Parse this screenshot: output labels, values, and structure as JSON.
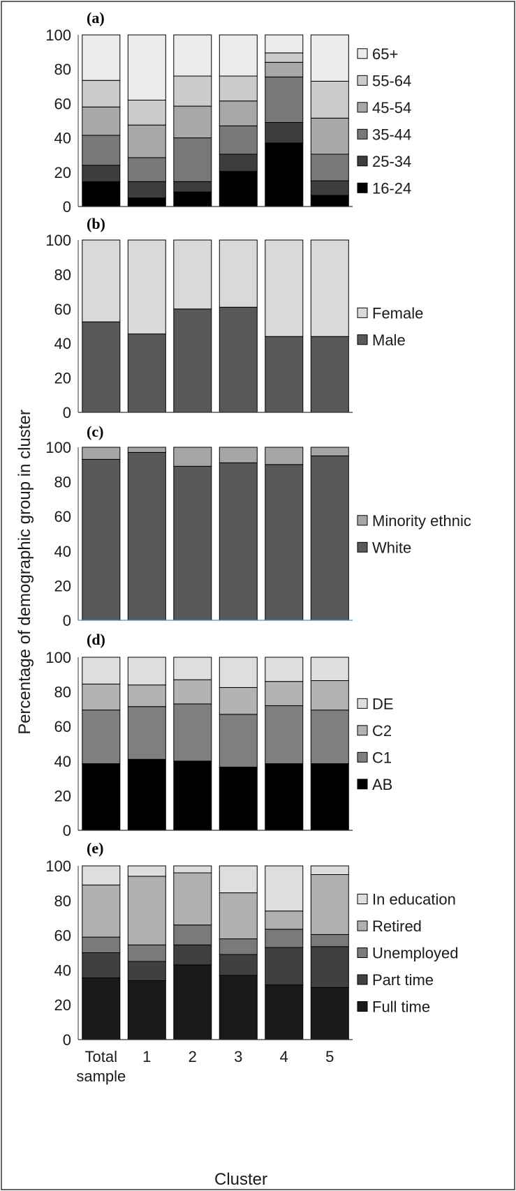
{
  "figure": {
    "ylabel": "Percentage of demographic group in cluster",
    "xlabel": "Cluster",
    "categories": [
      "Total sample",
      "1",
      "2",
      "3",
      "4",
      "5"
    ]
  },
  "chart_data": [
    {
      "type": "bar",
      "stacked": true,
      "label": "(a)",
      "categories": [
        "Total sample",
        "1",
        "2",
        "3",
        "4",
        "5"
      ],
      "ylim": [
        0,
        100
      ],
      "yticks": [
        0,
        20,
        40,
        60,
        80,
        100
      ],
      "legend_position": "right",
      "series": [
        {
          "name": "16-24",
          "color": "#000000",
          "values": [
            14.5,
            5,
            8.5,
            20.5,
            37,
            6.5
          ]
        },
        {
          "name": "25-34",
          "color": "#3d3d3d",
          "values": [
            9.5,
            9.5,
            6,
            10,
            12,
            8.5
          ]
        },
        {
          "name": "35-44",
          "color": "#787878",
          "values": [
            17.5,
            14,
            25.5,
            16.5,
            26.5,
            15.5
          ]
        },
        {
          "name": "45-54",
          "color": "#a8a8a8",
          "values": [
            16.5,
            19,
            18.5,
            14.5,
            8.5,
            21
          ]
        },
        {
          "name": "55-64",
          "color": "#cccccc",
          "values": [
            15.5,
            14.5,
            17.5,
            14.5,
            5.5,
            21.5
          ]
        },
        {
          "name": "65+",
          "color": "#ececec",
          "values": [
            26.5,
            38,
            24,
            24,
            10.5,
            27
          ]
        }
      ]
    },
    {
      "type": "bar",
      "stacked": true,
      "label": "(b)",
      "categories": [
        "Total sample",
        "1",
        "2",
        "3",
        "4",
        "5"
      ],
      "ylim": [
        0,
        100
      ],
      "yticks": [
        0,
        20,
        40,
        60,
        80,
        100
      ],
      "legend_position": "right",
      "series": [
        {
          "name": "Male",
          "color": "#595959",
          "values": [
            52.5,
            45.5,
            60,
            61,
            44,
            44
          ]
        },
        {
          "name": "Female",
          "color": "#d9d9d9",
          "values": [
            47.5,
            54.5,
            40,
            39,
            56,
            56
          ]
        }
      ]
    },
    {
      "type": "bar",
      "stacked": true,
      "label": "(c)",
      "categories": [
        "Total sample",
        "1",
        "2",
        "3",
        "4",
        "5"
      ],
      "ylim": [
        0,
        100
      ],
      "yticks": [
        0,
        20,
        40,
        60,
        80,
        100
      ],
      "legend_position": "right",
      "series": [
        {
          "name": "White",
          "color": "#595959",
          "values": [
            93,
            97,
            89,
            91,
            90,
            95
          ]
        },
        {
          "name": "Minority ethnic",
          "color": "#a6a6a6",
          "values": [
            7,
            3,
            11,
            9,
            10,
            5
          ]
        }
      ]
    },
    {
      "type": "bar",
      "stacked": true,
      "label": "(d)",
      "categories": [
        "Total sample",
        "1",
        "2",
        "3",
        "4",
        "5"
      ],
      "ylim": [
        0,
        100
      ],
      "yticks": [
        0,
        20,
        40,
        60,
        80,
        100
      ],
      "legend_position": "right",
      "series": [
        {
          "name": "AB",
          "color": "#000000",
          "values": [
            38.5,
            41,
            40,
            36.5,
            38.5,
            38.5
          ]
        },
        {
          "name": "C1",
          "color": "#7f7f7f",
          "values": [
            31,
            30.5,
            33,
            30.5,
            33.5,
            31
          ]
        },
        {
          "name": "C2",
          "color": "#b3b3b3",
          "values": [
            15,
            12.5,
            14,
            15.5,
            14,
            17
          ]
        },
        {
          "name": "DE",
          "color": "#dedede",
          "values": [
            15.5,
            16,
            13,
            17.5,
            14,
            13.5
          ]
        }
      ]
    },
    {
      "type": "bar",
      "stacked": true,
      "label": "(e)",
      "categories": [
        "Total sample",
        "1",
        "2",
        "3",
        "4",
        "5"
      ],
      "ylim": [
        0,
        100
      ],
      "yticks": [
        0,
        20,
        40,
        60,
        80,
        100
      ],
      "legend_position": "right",
      "series": [
        {
          "name": "Full time",
          "color": "#1a1a1a",
          "values": [
            35.5,
            34,
            43,
            37,
            31.5,
            30
          ]
        },
        {
          "name": "Part time",
          "color": "#404040",
          "values": [
            14.5,
            11,
            11.5,
            12,
            21.5,
            23.5
          ]
        },
        {
          "name": "Unemployed",
          "color": "#7a7a7a",
          "values": [
            9,
            9.5,
            11.5,
            9,
            10.5,
            7
          ]
        },
        {
          "name": "Retired",
          "color": "#b0b0b0",
          "values": [
            30,
            39.5,
            30,
            26.5,
            10.5,
            34.5
          ]
        },
        {
          "name": "In education",
          "color": "#dedede",
          "values": [
            11,
            6,
            4,
            15.5,
            26,
            5
          ]
        }
      ]
    }
  ]
}
